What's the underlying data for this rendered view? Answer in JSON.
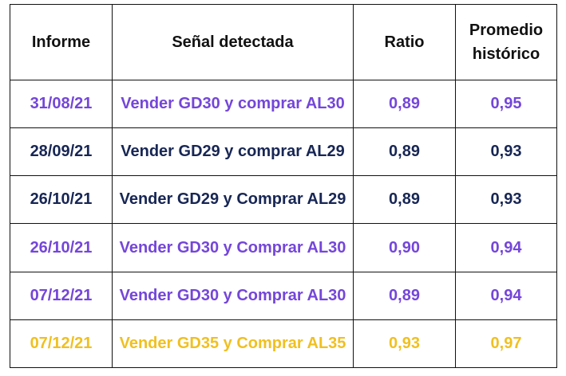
{
  "table": {
    "header": [
      "Informe",
      "Señal detectada",
      "Ratio",
      "Promedio histórico"
    ],
    "rows": [
      {
        "cells": [
          "31/08/21",
          "Vender GD30 y comprar AL30",
          "0,89",
          "0,95"
        ],
        "color": "#7446d9"
      },
      {
        "cells": [
          "28/09/21",
          "Vender GD29 y comprar AL29",
          "0,89",
          "0,93"
        ],
        "color": "#172654"
      },
      {
        "cells": [
          "26/10/21",
          "Vender GD29 y Comprar AL29",
          "0,89",
          "0,93"
        ],
        "color": "#172654"
      },
      {
        "cells": [
          "26/10/21",
          "Vender GD30 y Comprar AL30",
          "0,90",
          "0,94"
        ],
        "color": "#7446d9"
      },
      {
        "cells": [
          "07/12/21",
          "Vender GD30 y Comprar AL30",
          "0,89",
          "0,94"
        ],
        "color": "#7446d9"
      },
      {
        "cells": [
          "07/12/21",
          "Vender GD35 y Comprar AL35",
          "0,93",
          "0,97"
        ],
        "color": "#f0c020"
      }
    ]
  }
}
